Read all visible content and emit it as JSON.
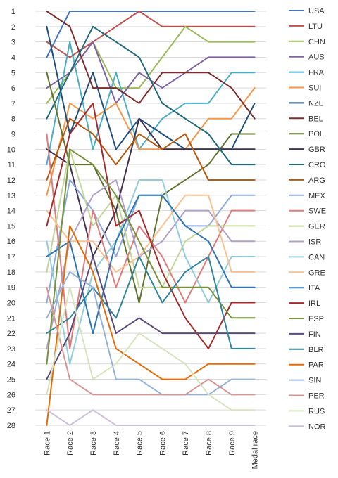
{
  "chart_data": {
    "type": "line",
    "title": "",
    "xlabel": "",
    "ylabel": "",
    "x": [
      "Race 1",
      "Race 2",
      "Race 3",
      "Race 4",
      "Race 5",
      "Race 6",
      "Race 7",
      "Race 8",
      "Race 9",
      "Medal race"
    ],
    "ylim": [
      28,
      1
    ],
    "y_ticks": [
      1,
      2,
      3,
      4,
      5,
      6,
      7,
      8,
      9,
      10,
      11,
      12,
      13,
      14,
      15,
      16,
      17,
      18,
      19,
      20,
      21,
      22,
      23,
      24,
      25,
      26,
      27,
      28
    ],
    "y_inverted": true,
    "grid": "horizontal",
    "legend_position": "right",
    "series": [
      {
        "name": "USA",
        "color": "#4472c4",
        "values": [
          4,
          1,
          1,
          1,
          1,
          1,
          1,
          1,
          1,
          1
        ]
      },
      {
        "name": "LTU",
        "color": "#c0504d",
        "values": [
          3,
          4,
          3,
          2,
          1,
          2,
          2,
          2,
          2,
          2
        ]
      },
      {
        "name": "CHN",
        "color": "#9bbb59",
        "values": [
          7,
          5,
          3,
          6,
          6,
          4,
          2,
          3,
          3,
          3
        ]
      },
      {
        "name": "AUS",
        "color": "#8064a2",
        "values": [
          6,
          5,
          3,
          7,
          5,
          6,
          5,
          4,
          4,
          4
        ]
      },
      {
        "name": "FRA",
        "color": "#4bacc6",
        "values": [
          11,
          3,
          10,
          5,
          10,
          8,
          7,
          7,
          5,
          5
        ]
      },
      {
        "name": "SUI",
        "color": "#f79646",
        "values": [
          13,
          7,
          8,
          7,
          10,
          10,
          10,
          8,
          8,
          6
        ]
      },
      {
        "name": "NZL",
        "color": "#1f4e79",
        "values": [
          2,
          9,
          5,
          10,
          8,
          9,
          10,
          10,
          10,
          7
        ]
      },
      {
        "name": "BEL",
        "color": "#7b2c2c",
        "values": [
          1,
          2,
          6,
          6,
          7,
          5,
          5,
          5,
          6,
          8
        ]
      },
      {
        "name": "POL",
        "color": "#5f7530",
        "values": [
          5,
          11,
          11,
          14,
          20,
          13,
          12,
          11,
          9,
          9
        ]
      },
      {
        "name": "GBR",
        "color": "#403151",
        "values": [
          10,
          11,
          17,
          14,
          8,
          10,
          10,
          10,
          10,
          10
        ]
      },
      {
        "name": "CRO",
        "color": "#216a7a",
        "values": [
          8,
          5,
          2,
          3,
          4,
          7,
          8,
          9,
          11,
          11
        ]
      },
      {
        "name": "ARG",
        "color": "#b7590e",
        "values": [
          12,
          8,
          9,
          11,
          9,
          10,
          9,
          12,
          12,
          12
        ]
      },
      {
        "name": "MEX",
        "color": "#8ea9db",
        "values": [
          20,
          12,
          14,
          17,
          13,
          13,
          15,
          15,
          13,
          13
        ]
      },
      {
        "name": "SWE",
        "color": "#e07b7b",
        "values": [
          9,
          23,
          14,
          19,
          15,
          17,
          20,
          17,
          14,
          14
        ]
      },
      {
        "name": "GER",
        "color": "#c4d79b",
        "values": [
          18,
          10,
          15,
          13,
          19,
          19,
          16,
          15,
          15,
          15
        ]
      },
      {
        "name": "ISR",
        "color": "#b1a0c7",
        "values": [
          23,
          16,
          13,
          12,
          17,
          16,
          14,
          14,
          16,
          16
        ]
      },
      {
        "name": "CAN",
        "color": "#92cddc",
        "values": [
          16,
          24,
          18,
          16,
          12,
          12,
          17,
          20,
          17,
          17
        ]
      },
      {
        "name": "GRE",
        "color": "#fac090",
        "values": [
          14,
          16,
          16,
          18,
          17,
          15,
          13,
          13,
          18,
          18
        ]
      },
      {
        "name": "ITA",
        "color": "#2e75b6",
        "values": [
          17,
          16,
          22,
          16,
          13,
          13,
          15,
          16,
          19,
          19
        ]
      },
      {
        "name": "IRL",
        "color": "#a52a2a",
        "values": [
          15,
          9,
          7,
          15,
          14,
          18,
          21,
          23,
          20,
          20
        ]
      },
      {
        "name": "ESP",
        "color": "#76923c",
        "values": [
          24,
          10,
          11,
          13,
          16,
          19,
          19,
          19,
          21,
          21
        ]
      },
      {
        "name": "FIN",
        "color": "#5b4a7a",
        "values": [
          25,
          22,
          17,
          22,
          21,
          22,
          22,
          22,
          22,
          22
        ]
      },
      {
        "name": "BLR",
        "color": "#31859c",
        "values": [
          22,
          21,
          19,
          21,
          17,
          20,
          18,
          17,
          23,
          23
        ]
      },
      {
        "name": "PAR",
        "color": "#e36c09",
        "values": [
          28,
          15,
          18,
          23,
          24,
          25,
          25,
          24,
          24,
          24
        ]
      },
      {
        "name": "SIN",
        "color": "#95b3d7",
        "values": [
          21,
          18,
          19,
          25,
          25,
          26,
          26,
          26,
          25,
          25
        ]
      },
      {
        "name": "PER",
        "color": "#d99594",
        "values": [
          19,
          25,
          26,
          26,
          26,
          26,
          26,
          25,
          26,
          26
        ]
      },
      {
        "name": "RUS",
        "color": "#d7e4bd",
        "values": [
          26,
          19,
          25,
          24,
          22,
          23,
          24,
          26,
          27,
          27
        ]
      },
      {
        "name": "NOR",
        "color": "#ccc0da",
        "values": [
          27,
          28,
          27,
          28,
          28,
          28,
          28,
          28,
          28,
          28
        ]
      }
    ]
  }
}
